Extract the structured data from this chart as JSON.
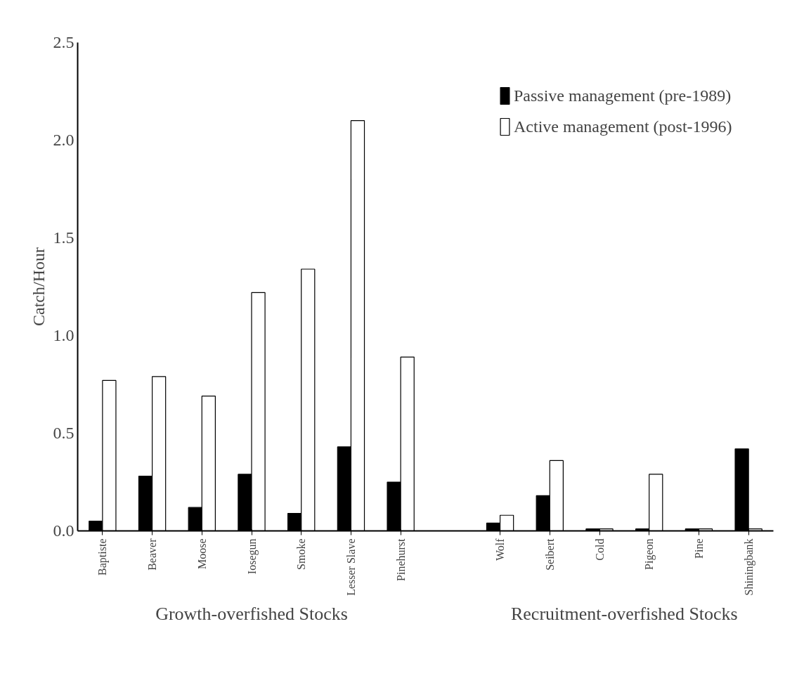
{
  "chart_data": {
    "type": "bar",
    "ylabel": "Catch/Hour",
    "categories": [
      "Baptiste",
      "Beaver",
      "Moose",
      "Iosegun",
      "Smoke",
      "Lesser Slave",
      "Pinehurst",
      null,
      "Wolf",
      "Seibert",
      "Cold",
      "Pigeon",
      "Pine",
      "Shiningbank"
    ],
    "series": [
      {
        "name": "Passive management (pre-1989)",
        "color": "#000000",
        "values": [
          0.05,
          0.28,
          0.12,
          0.29,
          0.09,
          0.43,
          0.25,
          null,
          0.04,
          0.18,
          0.01,
          0.01,
          0.01,
          0.42
        ]
      },
      {
        "name": "Active management (post-1996)",
        "color": "#ffffff",
        "values": [
          0.77,
          0.79,
          0.69,
          1.22,
          1.34,
          2.1,
          0.89,
          null,
          0.08,
          0.36,
          0.01,
          0.29,
          0.01,
          0.01
        ]
      }
    ],
    "ylim": [
      0,
      2.5
    ],
    "yticks": [
      {
        "value": 0,
        "label": "0.0"
      },
      {
        "value": 0.5,
        "label": "0.5"
      },
      {
        "value": 1,
        "label": "1.0"
      },
      {
        "value": 1.5,
        "label": "1.5"
      },
      {
        "value": 2,
        "label": "2.0"
      },
      {
        "value": 2.5,
        "label": "2.5"
      }
    ],
    "annotations": [
      "Growth-overfished Stocks",
      "Recruitment-overfished Stocks"
    ],
    "grid": false,
    "legend": "top right"
  }
}
